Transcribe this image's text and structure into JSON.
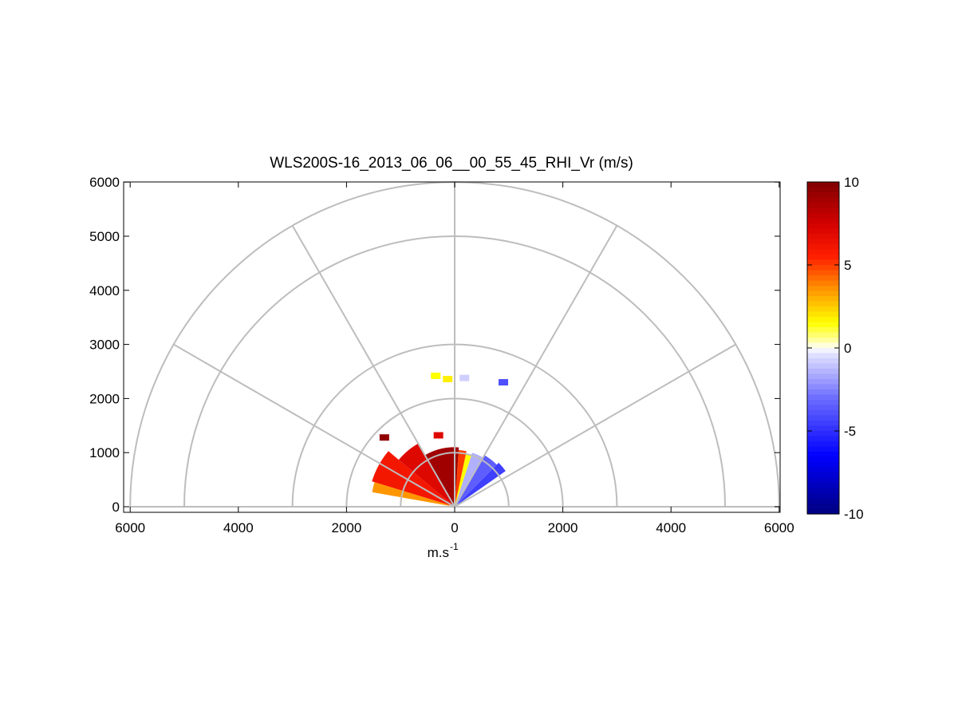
{
  "chart_data": {
    "type": "polar-rhi",
    "title": "WLS200S-16_2013_06_06__00_55_45_RHI_Vr (m/s)",
    "xlabel_base": "m.s",
    "xlabel_exp": "-1",
    "x_ticks": [
      6000,
      4000,
      2000,
      0,
      2000,
      4000,
      6000
    ],
    "y_ticks": [
      0,
      1000,
      2000,
      3000,
      4000,
      5000,
      6000
    ],
    "xlim": [
      -6000,
      6000
    ],
    "ylim": [
      -100,
      6000
    ],
    "range_rings": [
      1000,
      2000,
      3000,
      5000,
      6000
    ],
    "spoke_angles_deg": [
      0,
      30,
      60,
      90,
      120,
      150,
      180
    ],
    "colorbar": {
      "min": -10,
      "max": 10,
      "ticks": [
        10,
        5,
        0,
        -5,
        -10
      ],
      "colormap": "blue-white-yellow-red"
    },
    "sectors": [
      {
        "az_from": 35,
        "az_to": 45,
        "r_from": 60,
        "r_to": 1150,
        "vr": -4.5
      },
      {
        "az_from": 45,
        "az_to": 60,
        "r_from": 60,
        "r_to": 1100,
        "vr": -3.5
      },
      {
        "az_from": 60,
        "az_to": 72,
        "r_from": 60,
        "r_to": 1050,
        "vr": -1.5
      },
      {
        "az_from": 72,
        "az_to": 78,
        "r_from": 60,
        "r_to": 1000,
        "vr": 1.5
      },
      {
        "az_from": 78,
        "az_to": 86,
        "r_from": 60,
        "r_to": 1050,
        "vr": 5.0
      },
      {
        "az_from": 86,
        "az_to": 120,
        "r_from": 60,
        "r_to": 1100,
        "vr": 9.0
      },
      {
        "az_from": 120,
        "az_to": 140,
        "r_from": 60,
        "r_to": 1350,
        "vr": 7.0
      },
      {
        "az_from": 140,
        "az_to": 163,
        "r_from": 60,
        "r_to": 1600,
        "vr": 6.0
      },
      {
        "az_from": 163,
        "az_to": 170,
        "r_from": 100,
        "r_to": 1550,
        "vr": 3.5
      }
    ],
    "patches": [
      {
        "x": -350,
        "y": 2420,
        "vr": 1.5
      },
      {
        "x": -130,
        "y": 2360,
        "vr": 1.8
      },
      {
        "x": 180,
        "y": 2380,
        "vr": -0.8
      },
      {
        "x": 900,
        "y": 2300,
        "vr": -4.0
      },
      {
        "x": -1300,
        "y": 1280,
        "vr": 9.5
      },
      {
        "x": -300,
        "y": 1320,
        "vr": 7.0
      }
    ]
  }
}
